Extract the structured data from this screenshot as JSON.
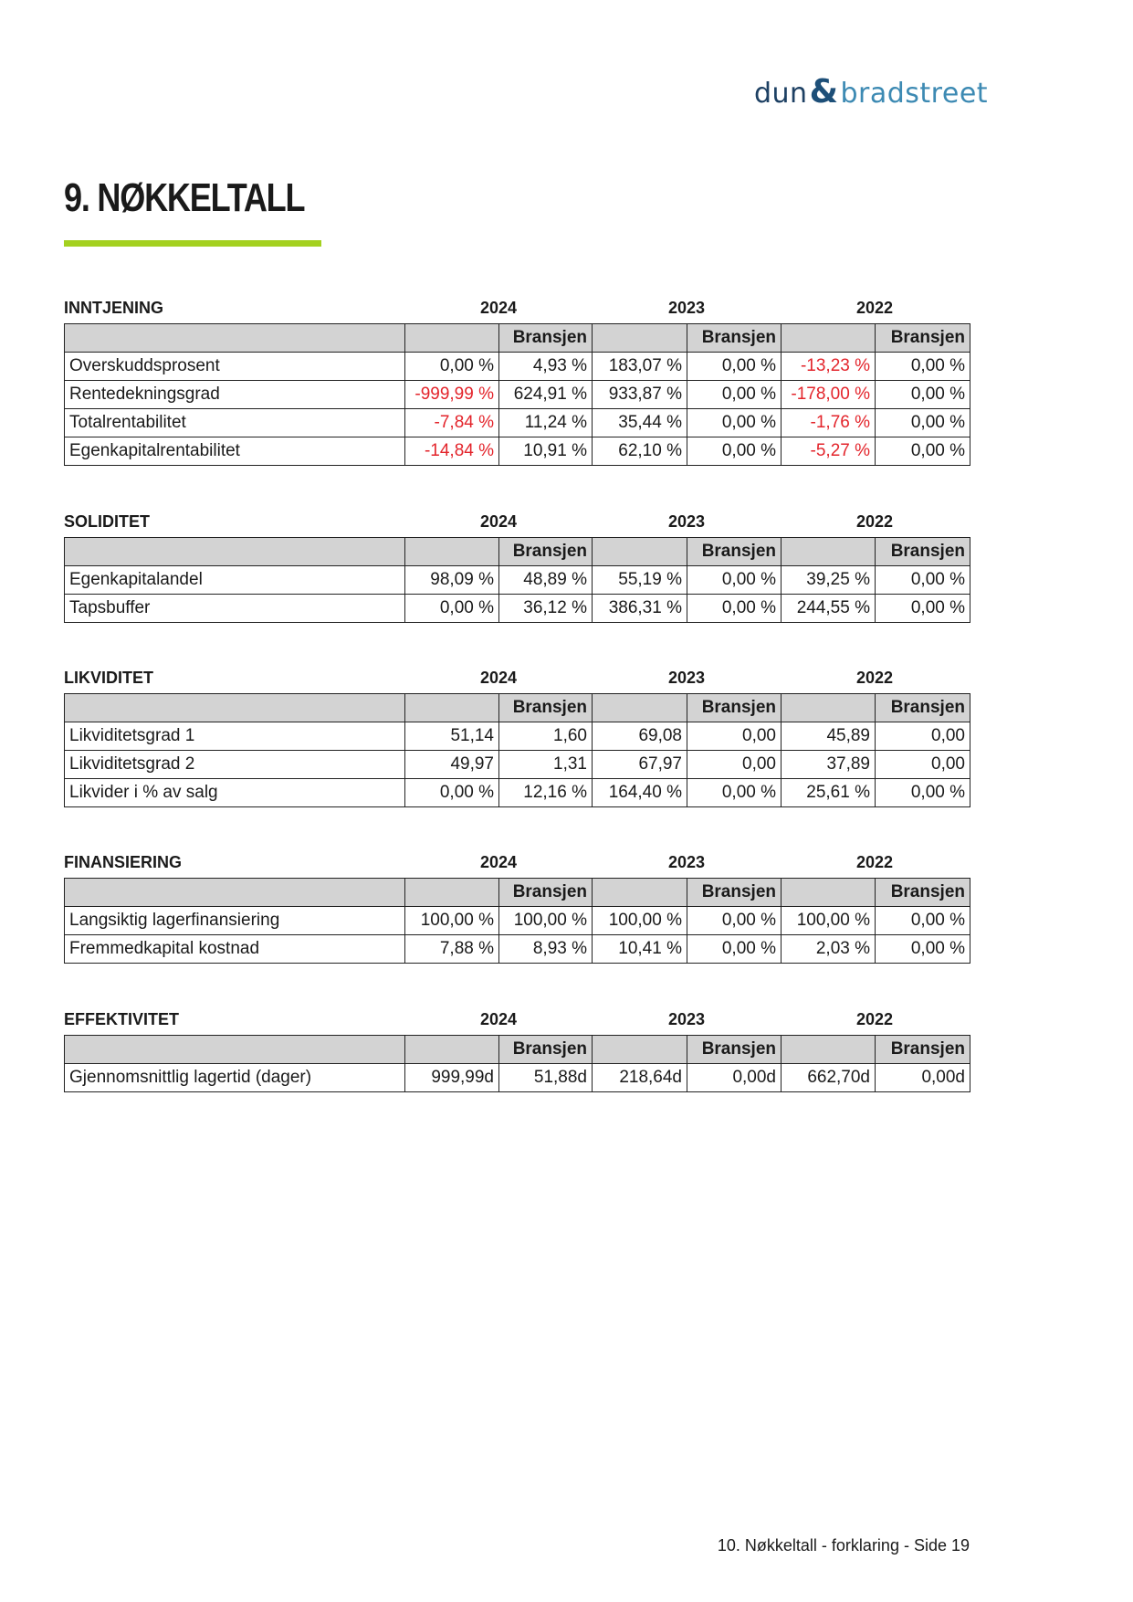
{
  "logo": {
    "part1": "dun",
    "amp": "&",
    "part2": "bradstreet"
  },
  "title": "9. NØKKELTALL",
  "accent_color": "#a4d11f",
  "negative_color": "#e3242b",
  "bransjen_label": "Bransjen",
  "years": [
    "2024",
    "2023",
    "2022"
  ],
  "sections": [
    {
      "title": "INNTJENING",
      "rows": [
        {
          "label": "Overskuddsprosent",
          "values": [
            "0,00 %",
            "4,93 %",
            "183,07 %",
            "0,00 %",
            "-13,23 %",
            "0,00 %"
          ]
        },
        {
          "label": "Rentedekningsgrad",
          "values": [
            "-999,99 %",
            "624,91 %",
            "933,87 %",
            "0,00 %",
            "-178,00 %",
            "0,00 %"
          ]
        },
        {
          "label": "Totalrentabilitet",
          "values": [
            "-7,84 %",
            "11,24 %",
            "35,44 %",
            "0,00 %",
            "-1,76 %",
            "0,00 %"
          ]
        },
        {
          "label": "Egenkapitalrentabilitet",
          "values": [
            "-14,84 %",
            "10,91 %",
            "62,10 %",
            "0,00 %",
            "-5,27 %",
            "0,00 %"
          ]
        }
      ]
    },
    {
      "title": "SOLIDITET",
      "rows": [
        {
          "label": "Egenkapitalandel",
          "values": [
            "98,09 %",
            "48,89 %",
            "55,19 %",
            "0,00 %",
            "39,25 %",
            "0,00 %"
          ]
        },
        {
          "label": "Tapsbuffer",
          "values": [
            "0,00 %",
            "36,12 %",
            "386,31 %",
            "0,00 %",
            "244,55 %",
            "0,00 %"
          ]
        }
      ]
    },
    {
      "title": "LIKVIDITET",
      "rows": [
        {
          "label": "Likviditetsgrad 1",
          "values": [
            "51,14",
            "1,60",
            "69,08",
            "0,00",
            "45,89",
            "0,00"
          ]
        },
        {
          "label": "Likviditetsgrad 2",
          "values": [
            "49,97",
            "1,31",
            "67,97",
            "0,00",
            "37,89",
            "0,00"
          ]
        },
        {
          "label": "Likvider i % av salg",
          "values": [
            "0,00 %",
            "12,16 %",
            "164,40 %",
            "0,00 %",
            "25,61 %",
            "0,00 %"
          ]
        }
      ]
    },
    {
      "title": "FINANSIERING",
      "rows": [
        {
          "label": "Langsiktig lagerfinansiering",
          "values": [
            "100,00 %",
            "100,00 %",
            "100,00 %",
            "0,00 %",
            "100,00 %",
            "0,00 %"
          ]
        },
        {
          "label": "Fremmedkapital kostnad",
          "values": [
            "7,88 %",
            "8,93 %",
            "10,41 %",
            "0,00 %",
            "2,03 %",
            "0,00 %"
          ]
        }
      ]
    },
    {
      "title": "EFFEKTIVITET",
      "rows": [
        {
          "label": "Gjennomsnittlig lagertid (dager)",
          "values": [
            "999,99d",
            "51,88d",
            "218,64d",
            "0,00d",
            "662,70d",
            "0,00d"
          ]
        }
      ]
    }
  ],
  "footer": "10. Nøkkeltall - forklaring - Side 19"
}
